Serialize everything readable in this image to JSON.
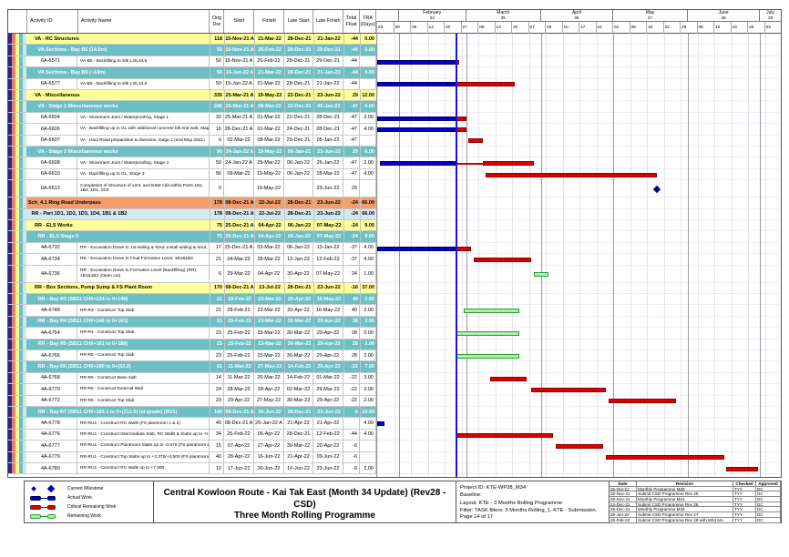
{
  "colors": {
    "actual": "#0000CC",
    "critical": "#DD0000",
    "remaining_fill": "#AEEDAE",
    "remaining_border": "#2E9E2E",
    "milestone": "#00008B",
    "data_date_line": "#1414E6",
    "band_yellow": "#FFFF99",
    "band_teal": "#6CBFC4",
    "band_orange": "#F49C6B",
    "band_lightblue": "#D2E8F5"
  },
  "chart_data": {
    "type": "table",
    "title": "Central Kowloon Route - Kai Tak East (Month 34 Update) (Rev28 - CSD) Three Month Rolling Programme",
    "columns": [
      "Activity ID",
      "Activity Name",
      "Orig Dur",
      "Start",
      "Finish",
      "Late Start",
      "Late Finish",
      "Total Float",
      "TRA (Days)"
    ],
    "timeline": {
      "start": "2022-01-23",
      "end": "2022-07-10",
      "data_date": "2022-02-25",
      "months": [
        {
          "label": "February",
          "num": "34",
          "from": "2022-02-01",
          "to": "2022-03-01"
        },
        {
          "label": "March",
          "num": "35",
          "from": "2022-03-01",
          "to": "2022-04-01"
        },
        {
          "label": "April",
          "num": "36",
          "from": "2022-04-01",
          "to": "2022-05-01"
        },
        {
          "label": "May",
          "num": "37",
          "from": "2022-05-01",
          "to": "2022-06-01"
        },
        {
          "label": "June",
          "num": "38",
          "from": "2022-06-01",
          "to": "2022-07-01"
        },
        {
          "label": "July",
          "num": "39",
          "from": "2022-07-01",
          "to": "2022-07-10"
        }
      ]
    },
    "rows": [
      {
        "band": "yellow",
        "indent": 2,
        "id": "",
        "name": "VA - RC Structures",
        "dur": "118",
        "start": "15-Nov-21 A",
        "finish": "21-Mar-22",
        "ls": "28-Dec-21",
        "lf": "21-Jan-22",
        "tf": "-44",
        "tra": "0.00"
      },
      {
        "band": "teal",
        "indent": 3,
        "id": "",
        "name": "VA Sections - Bay B5 (14.5m)",
        "dur": "50",
        "start": "15-Nov-21 A",
        "finish": "26-Feb-22",
        "ls": "28-Dec-21",
        "lf": "29-Dec-21",
        "tf": "-44",
        "tra": "0.00"
      },
      {
        "band": "white",
        "id": "6A-6571",
        "name": "VA-B5 - Backfilling to stlk L3/L4/L5",
        "dur": "50",
        "start": "15-Nov-21 A",
        "finish": "26-Feb-22",
        "ls": "28-Dec-21",
        "lf": "29-Dec-21",
        "tf": "-44",
        "tra": "",
        "bar": {
          "actual": [
            "2021-11-15",
            "2022-02-25"
          ],
          "critical": [
            "2022-02-25",
            "2022-02-26"
          ]
        }
      },
      {
        "band": "teal",
        "indent": 3,
        "id": "",
        "name": "VA Sections - Bay B6 (~14m)",
        "dur": "50",
        "start": "15-Jan-22 A",
        "finish": "21-Mar-22",
        "ls": "28-Dec-21",
        "lf": "21-Jan-22",
        "tf": "-44",
        "tra": "0.00"
      },
      {
        "band": "white",
        "id": "6A-6577",
        "name": "VA-B6 - Backfilling to stlk L3/L4/L5",
        "dur": "50",
        "start": "15-Jan-22 A",
        "finish": "21-Mar-22",
        "ls": "28-Dec-21",
        "lf": "21-Jan-22",
        "tf": "-44",
        "tra": "",
        "bar": {
          "actual": [
            "2022-01-15",
            "2022-02-25"
          ],
          "critical": [
            "2022-02-25",
            "2022-03-21"
          ]
        }
      },
      {
        "band": "yellow",
        "indent": 2,
        "id": "",
        "name": "VA - Miscellaneous",
        "dur": "335",
        "start": "25-Mar-21 A",
        "finish": "19-May-22",
        "ls": "22-Dec-21",
        "lf": "23-Jun-22",
        "tf": "29",
        "tra": "12.00"
      },
      {
        "band": "teal",
        "indent": 3,
        "id": "",
        "name": "VA - Stage 1 Miscellaneous works",
        "dur": "246",
        "start": "25-Mar-21 A",
        "finish": "08-Mar-22",
        "ls": "22-Dec-21",
        "lf": "05-Jan-22",
        "tf": "-47",
        "tra": "6.00"
      },
      {
        "band": "white",
        "id": "6A-6604",
        "name": "VA - Movement Joint / Waterproofing, Stage 1",
        "dur": "32",
        "start": "25-Mar-21 A",
        "finish": "01-Mar-22",
        "ls": "22-Dec-21",
        "lf": "28-Dec-21",
        "tf": "-47",
        "tra": "2.00",
        "bar": {
          "actual": [
            "2021-03-25",
            "2022-02-25"
          ],
          "critical": [
            "2022-02-25",
            "2022-03-01"
          ]
        }
      },
      {
        "band": "white",
        "id": "6A-6606",
        "name": "VA - Backfilling up to GL with additional concrete blk end wall, Stage 1",
        "dur": "16",
        "start": "28-Dec-21 A",
        "finish": "01-Mar-22",
        "ls": "24-Dec-21",
        "lf": "28-Dec-21",
        "tf": "-47",
        "tra": "4.00",
        "bar": {
          "actual": [
            "2021-12-28",
            "2022-02-25"
          ],
          "critical": [
            "2022-02-25",
            "2022-03-01"
          ]
        }
      },
      {
        "band": "white",
        "id": "6A-6607",
        "name": "VA - Haul Road preparation & diversion, stage 1 (end May 2021)",
        "dur": "6",
        "start": "02-Mar-22",
        "finish": "08-Mar-22",
        "ls": "29-Dec-21",
        "lf": "05-Jan-22",
        "tf": "-47",
        "tra": "",
        "bar": {
          "critical": [
            "2022-03-02",
            "2022-03-08"
          ]
        }
      },
      {
        "band": "teal",
        "indent": 3,
        "id": "",
        "name": "VA - Stage 3 Miscellaneous works",
        "dur": "90",
        "start": "24-Jan-22 A",
        "finish": "19-May-22",
        "ls": "06-Jan-22",
        "lf": "23-Jun-22",
        "tf": "29",
        "tra": "6.00"
      },
      {
        "band": "white",
        "id": "6A-6608",
        "name": "VA - Movement Joint / Waterproofing, Stage 3",
        "dur": "50",
        "start": "24-Jan-22 A",
        "finish": "29-Mar-22",
        "ls": "06-Jan-22",
        "lf": "26-Jan-22",
        "tf": "-47",
        "tra": "2.00",
        "bar": {
          "actual": [
            "2022-01-24",
            "2022-02-25"
          ],
          "critical_thin": [
            "2022-02-25",
            "2022-03-08"
          ],
          "critical": [
            "2022-03-08",
            "2022-03-29"
          ]
        }
      },
      {
        "band": "white",
        "id": "6A-6610",
        "name": "VA - Backfilling up to GL, Stage 3",
        "dur": "56",
        "start": "09-Mar-22",
        "finish": "19-May-22",
        "ls": "06-Jan-22",
        "lf": "18-Mar-22",
        "tf": "-47",
        "tra": "4.00",
        "bar": {
          "critical": [
            "2022-03-09",
            "2022-05-19"
          ]
        }
      },
      {
        "band": "white",
        "tall": true,
        "id": "6A-6612",
        "name": "Completion of Structure of vent. and E&M Adit within Parts 1B1, 1B2, 1D1, 1D3",
        "dur": "0",
        "start": "",
        "finish": "19-May-22",
        "ls": "",
        "lf": "23-Jun-22",
        "tf": "29",
        "tra": "",
        "bar": {
          "milestone": "2022-05-19"
        }
      },
      {
        "band": "orange",
        "indent": 0,
        "id": "",
        "name": "Sch_4.1 Ring Road Underpass",
        "dur": "178",
        "start": "08-Dec-21 A",
        "finish": "22-Jul-22",
        "ls": "28-Dec-21",
        "lf": "23-Jun-22",
        "tf": "-24",
        "tra": "66.00"
      },
      {
        "band": "lightblue",
        "indent": 1,
        "id": "",
        "name": "RR - Part 1D1, 1D2, 1D3, 1D4, 1B1 & 1B2",
        "dur": "178",
        "start": "08-Dec-21 A",
        "finish": "22-Jul-22",
        "ls": "28-Dec-21",
        "lf": "23-Jun-22",
        "tf": "-24",
        "tra": "66.00"
      },
      {
        "band": "yellow",
        "indent": 2,
        "id": "",
        "name": "RR - ELS Works",
        "dur": "75",
        "start": "25-Dec-21 A",
        "finish": "04-Apr-22",
        "ls": "06-Jan-22",
        "lf": "07-May-22",
        "tf": "-24",
        "tra": "9.00"
      },
      {
        "band": "teal",
        "indent": 3,
        "id": "",
        "name": "RR - ELS Stage 5",
        "dur": "75",
        "start": "25-Dec-21 A",
        "finish": "04-Apr-22",
        "ls": "06-Jan-22",
        "lf": "07-May-22",
        "tf": "-24",
        "tra": "9.00"
      },
      {
        "band": "white",
        "id": "4A-6732",
        "name": "RR - Excavation Down to 1st waling & Strut; Install waling & Strut, 1B1&1B2",
        "dur": "17",
        "start": "25-Dec-21 A",
        "finish": "03-Mar-22",
        "ls": "06-Jan-22",
        "lf": "13-Jan-22",
        "tf": "-37",
        "tra": "4.00",
        "bar": {
          "actual": [
            "2021-12-25",
            "2022-02-25"
          ],
          "critical": [
            "2022-02-25",
            "2022-03-03"
          ]
        }
      },
      {
        "band": "white",
        "id": "4A-6734",
        "name": "RR - Excavation Down to Final Formation Level, 1B1&1B2",
        "dur": "21",
        "start": "04-Mar-22",
        "finish": "28-Mar-22",
        "ls": "13-Jan-22",
        "lf": "12-Feb-22",
        "tf": "-37",
        "tra": "4.00",
        "bar": {
          "critical": [
            "2022-03-04",
            "2022-03-28"
          ]
        }
      },
      {
        "band": "white",
        "tall": true,
        "id": "4A-6736",
        "name": "RR - Excavation Down to Formation Level (Backfilling) (RR), 1B1&1B2 (Open cut)",
        "dur": "6",
        "start": "29-Mar-22",
        "finish": "04-Apr-22",
        "ls": "30-Apr-22",
        "lf": "07-May-22",
        "tf": "24",
        "tra": "1.00",
        "bar": {
          "remaining": [
            "2022-03-29",
            "2022-04-04"
          ]
        }
      },
      {
        "band": "yellow",
        "indent": 2,
        "id": "",
        "name": "RR - Box Sections, Pump Sump & FS Plant Room",
        "dur": "170",
        "start": "08-Dec-21 A",
        "finish": "13-Jul-22",
        "ls": "28-Dec-21",
        "lf": "23-Jun-22",
        "tf": "-16",
        "tra": "37.00"
      },
      {
        "band": "teal",
        "indent": 3,
        "id": "",
        "name": "RR - Bay R3 (SB11 CH0+134 to 0+146)",
        "dur": "21",
        "start": "28-Feb-22",
        "finish": "23-Mar-22",
        "ls": "20-Apr-22",
        "lf": "16-May-22",
        "tf": "40",
        "tra": "2.00"
      },
      {
        "band": "white",
        "id": "4A-6748",
        "name": "RR-R3 - Construct Top Slab",
        "dur": "21",
        "start": "28-Feb-22",
        "finish": "23-Mar-22",
        "ls": "20-Apr-22",
        "lf": "16-May-22",
        "tf": "40",
        "tra": "2.00",
        "bar": {
          "remaining": [
            "2022-02-28",
            "2022-03-23"
          ]
        }
      },
      {
        "band": "teal",
        "indent": 3,
        "id": "",
        "name": "RR - Bay R4 (SB11 CH0+146 to 0+161)",
        "dur": "23",
        "start": "25-Feb-22",
        "finish": "23-Mar-22",
        "ls": "30-Mar-22",
        "lf": "29-Apr-22",
        "tf": "28",
        "tra": "2.00"
      },
      {
        "band": "white",
        "id": "4A-6754",
        "name": "RR-R4 - Construct Top Slab",
        "dur": "23",
        "start": "25-Feb-22",
        "finish": "23-Mar-22",
        "ls": "30-Mar-22",
        "lf": "29-Apr-22",
        "tf": "28",
        "tra": "2.00",
        "bar": {
          "remaining": [
            "2022-02-25",
            "2022-03-23"
          ]
        }
      },
      {
        "band": "teal",
        "indent": 3,
        "id": "",
        "name": "RR - Bay R5 (SB11 CH0+161 to 0+188)",
        "dur": "23",
        "start": "25-Feb-22",
        "finish": "23-Mar-22",
        "ls": "30-Mar-22",
        "lf": "29-Apr-22",
        "tf": "28",
        "tra": "2.00"
      },
      {
        "band": "white",
        "id": "4A-6766",
        "name": "RR-R5 - Construct Top Slab",
        "dur": "23",
        "start": "25-Feb-22",
        "finish": "23-Mar-22",
        "ls": "30-Mar-22",
        "lf": "29-Apr-22",
        "tf": "28",
        "tra": "2.00",
        "bar": {
          "remaining": [
            "2022-02-25",
            "2022-03-23"
          ]
        }
      },
      {
        "band": "teal",
        "indent": 3,
        "id": "",
        "name": "RR - Bay R6 (SB11 CH0+180 to 0+(53.2)",
        "dur": "61",
        "start": "11-Mar-22",
        "finish": "27-May-22",
        "ls": "14-Feb-22",
        "lf": "29-Apr-22",
        "tf": "-22",
        "tra": "7.00"
      },
      {
        "band": "white",
        "id": "4A-6768",
        "name": "RR-R6 - Construct Base slab",
        "dur": "14",
        "start": "11-Mar-22",
        "finish": "26-Mar-22",
        "ls": "14-Feb-22",
        "lf": "01-Mar-22",
        "tf": "-22",
        "tra": "3.00",
        "bar": {
          "critical": [
            "2022-03-11",
            "2022-03-26"
          ]
        }
      },
      {
        "band": "white",
        "id": "4A-6770",
        "name": "RR-R6 - Construct External Wall",
        "dur": "24",
        "start": "28-Mar-22",
        "finish": "28-Apr-22",
        "ls": "02-Mar-22",
        "lf": "29-Mar-22",
        "tf": "-22",
        "tra": "2.00",
        "bar": {
          "critical": [
            "2022-03-28",
            "2022-04-28"
          ]
        }
      },
      {
        "band": "white",
        "id": "4A-6772",
        "name": "RR-R6 - Construct Top Slab",
        "dur": "23",
        "start": "29-Apr-22",
        "finish": "27-May-22",
        "ls": "30-Mar-22",
        "lf": "29-Apr-22",
        "tf": "-22",
        "tra": "2.00",
        "bar": {
          "critical": [
            "2022-04-29",
            "2022-05-27"
          ]
        }
      },
      {
        "band": "teal",
        "indent": 3,
        "id": "",
        "name": "RR - Bay R7 (SB11 CH0+183.1 to 0+(213.5) (at-grade) (RU1)",
        "dur": "140",
        "start": "08-Dec-21 A",
        "finish": "30-Jun-22",
        "ls": "28-Dec-21",
        "lf": "23-Jun-22",
        "tf": "-6",
        "tra": "10.00"
      },
      {
        "band": "white",
        "id": "4A-6778",
        "name": "RR-RU1 - Construct  RC Walls (FS plantroom 1 & 2)",
        "dur": "40",
        "start": "08-Dec-21 A",
        "finish": "26-Jan-22 A",
        "ls": "21-Apr-22",
        "lf": "21-Apr-22",
        "tf": "",
        "tra": "4.00",
        "bar": {
          "actual": [
            "2021-12-08",
            "2022-01-26"
          ]
        }
      },
      {
        "band": "white",
        "id": "4A-6776",
        "name": "RR-RU1 - Construct Intermediate Slab, RC Walls & Slabs up to -0.925",
        "dur": "34",
        "start": "25-Feb-22",
        "finish": "06-Apr-22",
        "ls": "28-Dec-21",
        "lf": "12-Feb-22",
        "tf": "-44",
        "tra": "4.00",
        "bar": {
          "critical": [
            "2022-02-25",
            "2022-04-06"
          ]
        }
      },
      {
        "band": "white",
        "id": "4A-6777",
        "name": "RR-RU1 - Construct  Plantroom Slabs up to -0.675 (FS plantroom 2)",
        "dur": "15",
        "start": "07-Apr-22",
        "finish": "27-Apr-22",
        "ls": "30-Mar-22",
        "lf": "20-Apr-22",
        "tf": "-6",
        "tra": "",
        "bar": {
          "critical": [
            "2022-04-07",
            "2022-04-27"
          ]
        }
      },
      {
        "band": "white",
        "id": "4A-6779",
        "name": "RR-RU1 - Construct  Top Slabs up to +3.375/+4.500 (FS plantroom 1 & 2)",
        "dur": "40",
        "start": "28-Apr-22",
        "finish": "16-Jun-22",
        "ls": "21-Apr-22",
        "lf": "09-Jun-22",
        "tf": "-6",
        "tra": "",
        "bar": {
          "critical": [
            "2022-04-28",
            "2022-06-16"
          ]
        }
      },
      {
        "band": "white",
        "id": "4A-6780",
        "name": "RR-RU1 - Construct RC Walls up to +7.300",
        "dur": "12",
        "start": "17-Jun-22",
        "finish": "30-Jun-22",
        "ls": "10-Jun-22",
        "lf": "23-Jun-22",
        "tf": "-6",
        "tra": "2.00",
        "bar": {
          "critical": [
            "2022-06-17",
            "2022-06-30"
          ]
        }
      }
    ]
  },
  "footer": {
    "legend": [
      {
        "label": "Current Milestone",
        "type": "milestone",
        "color": "#0000C8"
      },
      {
        "label": "Actual Work",
        "type": "bar",
        "fill": "#0000CC",
        "border": "#000066"
      },
      {
        "label": "Critical Remaining Work",
        "type": "bar",
        "fill": "#DD0000",
        "border": "#8B0000"
      },
      {
        "label": "Remaining Work",
        "type": "bar",
        "fill": "#AEEDAE",
        "border": "#2E9E2E"
      }
    ],
    "title_line1": "Central Kowloon Route - Kai Tak East (Month 34 Update) (Rev28 - CSD)",
    "title_line2": "Three Month Rolling Programme",
    "info_lines": [
      "Project ID: KTE-WP28_M34",
      "Baseline:",
      "Layout: KTE - 3 Months Rolling Programme",
      "Filter: TASK filters: 3 Months Rolling_1, KTE - Submission."
    ],
    "page": "Page 14 of 17",
    "revisions": {
      "headers": [
        "Date",
        "Revision",
        "Checked",
        "Approved"
      ],
      "rows": [
        [
          "25-Oct-21",
          "Monthly Programme M30",
          "TYY",
          "DC"
        ],
        [
          "25-Nov-21",
          "Submit CSD Programme Rev 25",
          "TYY",
          "DC"
        ],
        [
          "25-Nov-21",
          "Monthly Programme M31",
          "TYY",
          "DC"
        ],
        [
          "24-Dec-21",
          "Submit CSD Programme Rev 26",
          "TYY",
          "DC"
        ],
        [
          "25-Dec-21",
          "Monthly Programme M32",
          "TYY",
          "DC"
        ],
        [
          "26-Jan-22",
          "Submit CSD Programme Rev 27",
          "TYY",
          "DC"
        ],
        [
          "25-Feb-22",
          "Submit CSD Programme Rev 28 with M34 Mo.",
          "TYY",
          "DC"
        ]
      ]
    }
  }
}
